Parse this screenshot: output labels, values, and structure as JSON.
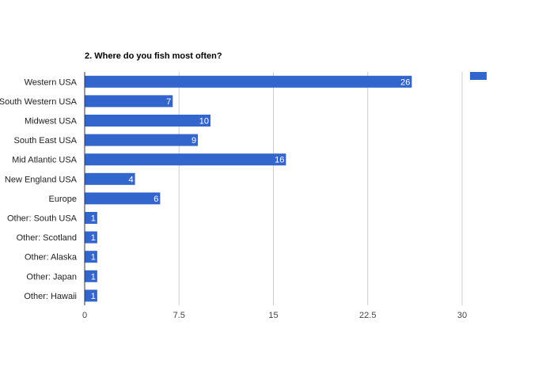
{
  "chart_data": {
    "type": "bar",
    "orientation": "horizontal",
    "title": "2. Where do you fish most often?",
    "categories": [
      "Western USA",
      "South Western USA",
      "Midwest USA",
      "South East USA",
      "Mid Atlantic USA",
      "New England USA",
      "Europe",
      "Other: South USA",
      "Other: Scotland",
      "Other: Alaska",
      "Other: Japan",
      "Other: Hawaii"
    ],
    "values": [
      26,
      7,
      10,
      9,
      16,
      4,
      6,
      1,
      1,
      1,
      1,
      1
    ],
    "data_labels": [
      "26",
      "7",
      "10",
      "9",
      "16",
      "4",
      "6",
      "1",
      "1",
      "1",
      "1",
      "1"
    ],
    "xticks": [
      "0",
      "7.5",
      "15",
      "22.5",
      "30"
    ],
    "xlim": [
      0,
      30
    ],
    "xlabel": "",
    "ylabel": "",
    "grid": true,
    "legend": {
      "position": "top-right",
      "entries": [
        ""
      ]
    },
    "colors": {
      "bar": "#3366cc",
      "grid": "#cccccc",
      "axis": "#333333"
    }
  }
}
